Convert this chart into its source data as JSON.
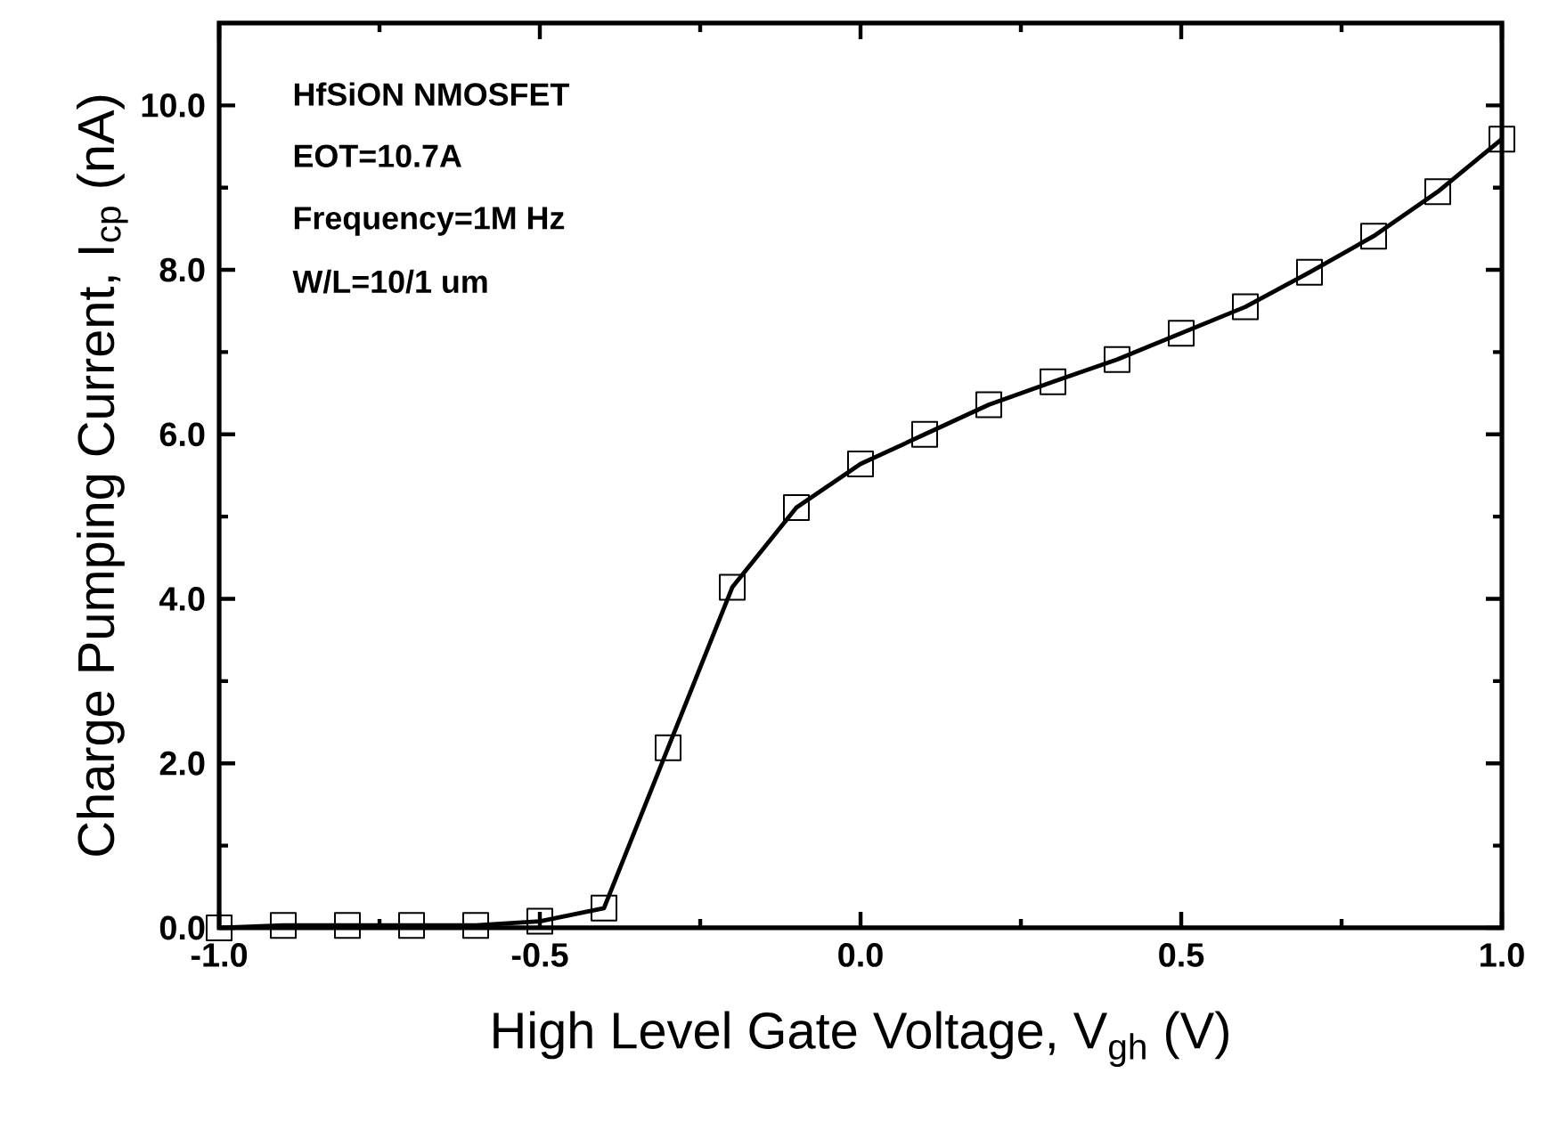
{
  "chart_data": {
    "type": "line",
    "xlabel": "High Level Gate Voltage, V$_{gh}$ (V)",
    "ylabel": "Charge Pumping Current, I$_{cp}$ (nA)",
    "annotations": [
      "HfSiON NMOSFET",
      "EOT=10.7A",
      "Frequency=1M Hz",
      "W/L=10/1 um"
    ],
    "x": [
      -1.0,
      -0.9,
      -0.8,
      -0.7,
      -0.6,
      -0.5,
      -0.4,
      -0.3,
      -0.2,
      -0.1,
      0.0,
      0.1,
      0.2,
      0.3,
      0.4,
      0.5,
      0.6,
      0.7,
      0.8,
      0.9,
      1.0
    ],
    "series": [
      {
        "color": "#000000",
        "values": [
          0.0,
          0.03,
          0.03,
          0.03,
          0.03,
          0.08,
          0.24,
          2.19,
          4.14,
          5.11,
          5.64,
          6.0,
          6.36,
          6.64,
          6.91,
          7.23,
          7.55,
          7.97,
          8.41,
          8.95,
          9.59
        ]
      }
    ],
    "xlim": [
      -1.0,
      1.0
    ],
    "ylim": [
      0,
      11
    ],
    "xticks": [
      {
        "value": -1.0,
        "label": "-1.0"
      },
      {
        "value": -0.5,
        "label": "-0.5"
      },
      {
        "value": 0.0,
        "label": "0.0"
      },
      {
        "value": 0.5,
        "label": "0.5"
      },
      {
        "value": 1.0,
        "label": "1.0"
      }
    ],
    "yticks": [
      {
        "value": 0,
        "label": "0.0"
      },
      {
        "value": 2,
        "label": "2.0"
      },
      {
        "value": 4,
        "label": "4.0"
      },
      {
        "value": 6,
        "label": "6.0"
      },
      {
        "value": 8,
        "label": "8.0"
      },
      {
        "value": 10,
        "label": "10.0"
      }
    ],
    "marker": "square",
    "line_style": "solid"
  }
}
